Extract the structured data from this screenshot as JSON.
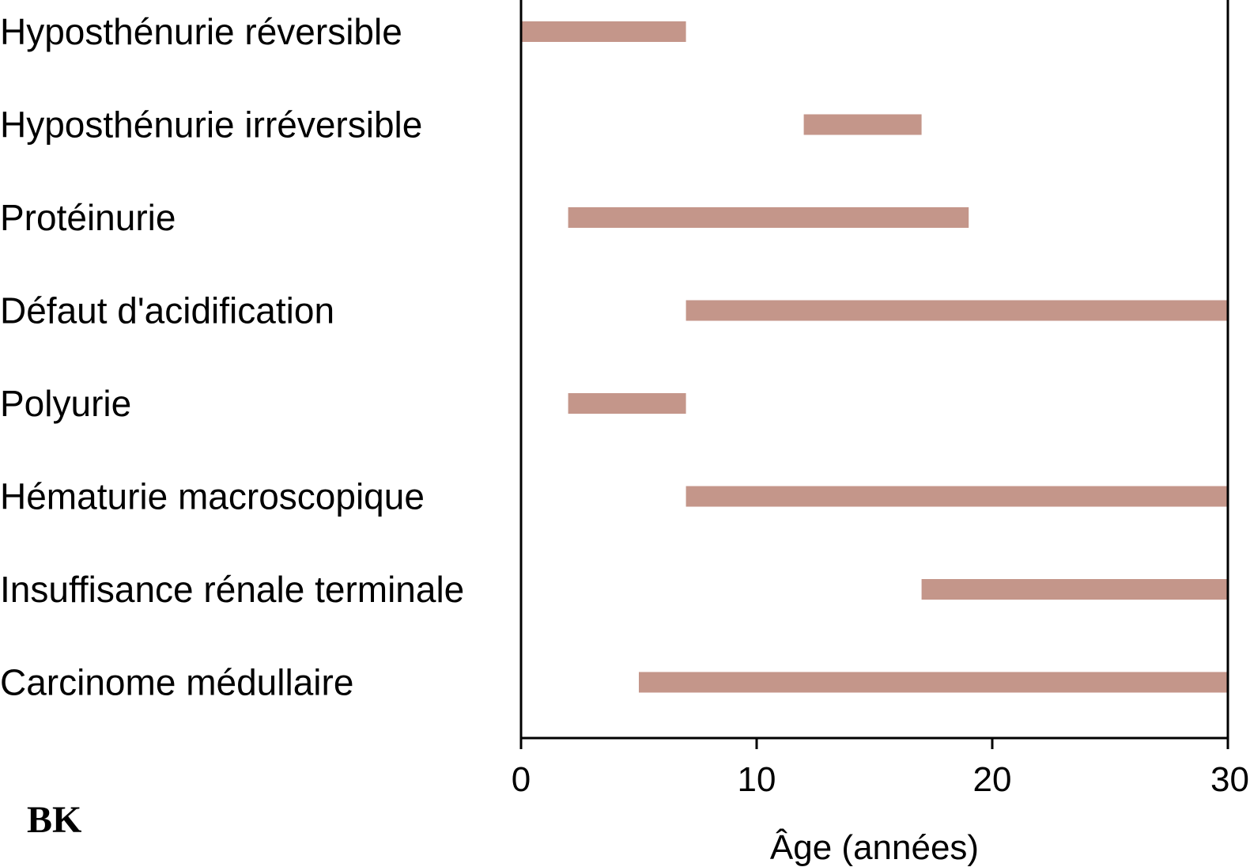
{
  "chart_data": {
    "type": "bar",
    "orientation": "horizontal-range",
    "title": "",
    "xlabel": "Âge (années)",
    "ylabel": "",
    "xlim": [
      0,
      30
    ],
    "xticks": [
      "0",
      "10",
      "20",
      "30"
    ],
    "grid": false,
    "legend": "none",
    "bar_color": "#c4968a",
    "categories": [
      "Hyposthénurie réversible",
      "Hyposthénurie irréversible",
      "Protéinurie",
      "Défaut d'acidification",
      "Polyurie",
      "Hématurie macroscopique",
      "Insuffisance rénale terminale",
      "Carcinome médullaire"
    ],
    "ranges": [
      [
        0,
        7
      ],
      [
        12,
        17
      ],
      [
        2,
        19
      ],
      [
        7,
        30
      ],
      [
        2,
        7
      ],
      [
        7,
        30
      ],
      [
        17,
        30
      ],
      [
        5,
        30
      ]
    ]
  },
  "corner_mark": "BK"
}
